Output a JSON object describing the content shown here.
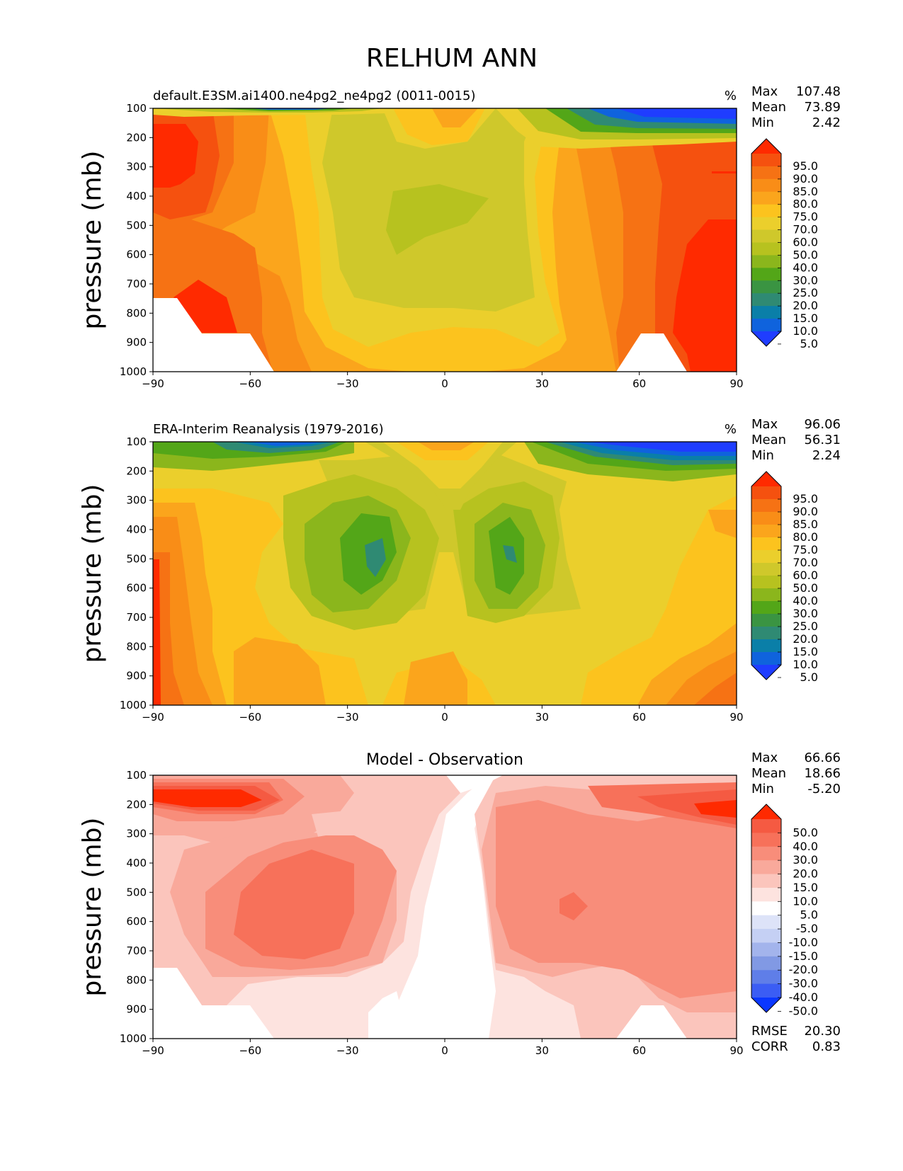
{
  "title": "RELHUM ANN",
  "y_axis_label": "pressure (mb)",
  "y_ticks": [
    "100",
    "200",
    "300",
    "400",
    "500",
    "600",
    "700",
    "800",
    "900",
    "1000"
  ],
  "x_ticks": [
    "−90",
    "−60",
    "−30",
    "0",
    "30",
    "60",
    "90"
  ],
  "colors": {
    "abs_levels": [
      "#1f3dff",
      "#0f63dd",
      "#0a7fa8",
      "#2f8a73",
      "#3a9442",
      "#53a618",
      "#8bb61c",
      "#b7c21f",
      "#cfc82b",
      "#ebcf2c",
      "#fcc31e",
      "#fba51c",
      "#f98d17",
      "#f67214",
      "#f5510f",
      "#ff2a00"
    ],
    "diff_levels": [
      "#0a37ff",
      "#3b5df4",
      "#5f7ee8",
      "#8199e4",
      "#a3b4ec",
      "#c5d0f4",
      "#dde3f8",
      "#ffffff",
      "#fde3df",
      "#fbc5bc",
      "#f9a99b",
      "#f88d7a",
      "#f7715a",
      "#f55a42",
      "#ff2a00"
    ]
  },
  "chart_data": [
    {
      "type": "contour",
      "title": "default.E3SM.ai1400.ne4pg2_ne4pg2 (0011-0015)",
      "units": "%",
      "stats": {
        "max_label": "Max",
        "max": "107.48",
        "mean_label": "Mean",
        "mean": "73.89",
        "min_label": "Min",
        "min": "2.42"
      },
      "colorbar_labels": [
        "95.0",
        "90.0",
        "85.0",
        "80.0",
        "75.0",
        "70.0",
        "60.0",
        "50.0",
        "40.0",
        "30.0",
        "25.0",
        "20.0",
        "15.0",
        "10.0",
        "5.0"
      ],
      "xlabel": "",
      "ylabel": "pressure (mb)",
      "xlim": [
        -90,
        90
      ],
      "ylim": [
        1000,
        100
      ]
    },
    {
      "type": "contour",
      "title": "ERA-Interim Reanalysis (1979-2016)",
      "units": "%",
      "stats": {
        "max_label": "Max",
        "max": "96.06",
        "mean_label": "Mean",
        "mean": "56.31",
        "min_label": "Min",
        "min": "2.24"
      },
      "colorbar_labels": [
        "95.0",
        "90.0",
        "85.0",
        "80.0",
        "75.0",
        "70.0",
        "60.0",
        "50.0",
        "40.0",
        "30.0",
        "25.0",
        "20.0",
        "15.0",
        "10.0",
        "5.0"
      ],
      "xlabel": "",
      "ylabel": "pressure (mb)",
      "xlim": [
        -90,
        90
      ],
      "ylim": [
        1000,
        100
      ]
    },
    {
      "type": "contour",
      "title": "Model - Observation",
      "units": "",
      "stats": {
        "max_label": "Max",
        "max": "66.66",
        "mean_label": "Mean",
        "mean": "18.66",
        "min_label": "Min",
        "min": "-5.20"
      },
      "colorbar_labels": [
        "50.0",
        "40.0",
        "30.0",
        "20.0",
        "15.0",
        "10.0",
        "5.0",
        "-5.0",
        "-10.0",
        "-15.0",
        "-20.0",
        "-30.0",
        "-40.0",
        "-50.0"
      ],
      "metrics": {
        "rmse_label": "RMSE",
        "rmse": "20.30",
        "corr_label": "CORR",
        "corr": "0.83"
      },
      "xlabel": "",
      "ylabel": "pressure (mb)",
      "xlim": [
        -90,
        90
      ],
      "ylim": [
        1000,
        100
      ]
    }
  ]
}
